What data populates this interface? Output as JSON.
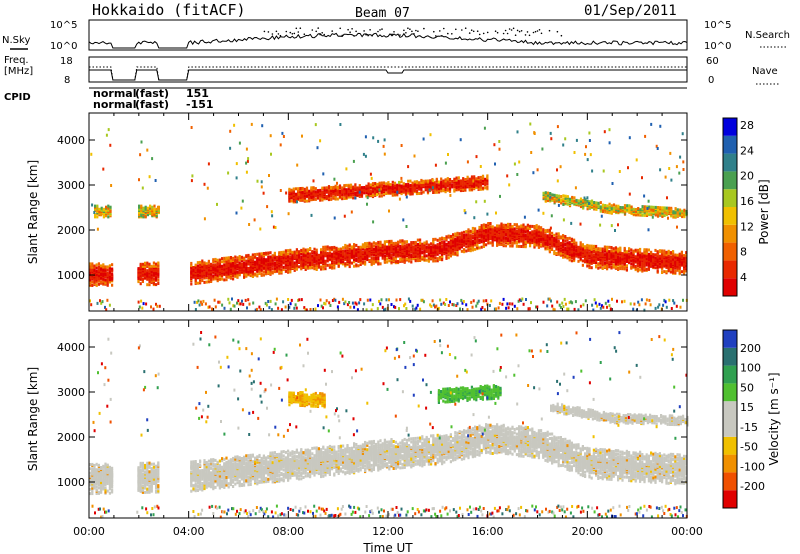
{
  "header": {
    "station": "Hokkaido (fitACF)",
    "beam": "Beam 07",
    "date": "01/Sep/2011"
  },
  "summary": {
    "nsky_label": "N.Sky",
    "nsearch_label": "N.Search",
    "freq_label_line1": "Freq.",
    "freq_label_line2": "[MHz]",
    "nave_label": "Nave",
    "cpid_label": "CPID",
    "nsky_ticks": [
      "10^5",
      "10^0"
    ],
    "nsearch_ticks": [
      "10^5",
      "10^0"
    ],
    "freq_ticks": [
      "18",
      "8"
    ],
    "nave_ticks": [
      "60",
      "0"
    ],
    "cpid_rows": [
      {
        "mode": "normal",
        "sub": "(fast)",
        "id": "151"
      },
      {
        "mode": "normal",
        "sub": "(fast)",
        "id": "-151"
      }
    ],
    "data_gaps_hours": [
      [
        0.9,
        1.9
      ],
      [
        2.8,
        4.0
      ]
    ]
  },
  "chart_data": [
    {
      "type": "heatmap",
      "name": "power",
      "ylabel": "Slant Range [km]",
      "xlim": [
        0,
        24
      ],
      "ylim": [
        200,
        4600
      ],
      "yticks": [
        "1000",
        "2000",
        "3000",
        "4000"
      ],
      "colorbar": {
        "label": "Power [dB]",
        "ticks": [
          "4",
          "8",
          "12",
          "16",
          "20",
          "24",
          "28"
        ],
        "colors": [
          "#0000dd",
          "#2060b0",
          "#30808a",
          "#4aa050",
          "#a8c820",
          "#f0c000",
          "#f09000",
          "#f06000",
          "#e82800",
          "#e00000"
        ]
      },
      "echo_bands": [
        {
          "start": 0.0,
          "end": 24.0,
          "center_km": [
            [
              0,
              1050
            ],
            [
              4,
              1080
            ],
            [
              8,
              1350
            ],
            [
              12,
              1550
            ],
            [
              14,
              1600
            ],
            [
              16,
              1950
            ],
            [
              18,
              1900
            ],
            [
              20,
              1450
            ],
            [
              24,
              1300
            ]
          ],
          "width_km": 500,
          "level": "high"
        },
        {
          "start": 0.2,
          "end": 4.0,
          "center_km": [
            [
              0,
              2450
            ],
            [
              4,
              2450
            ]
          ],
          "width_km": 250,
          "level": "medium"
        },
        {
          "start": 8.0,
          "end": 16.0,
          "center_km": [
            [
              8,
              2800
            ],
            [
              12,
              2950
            ],
            [
              16,
              3100
            ]
          ],
          "width_km": 300,
          "level": "high"
        },
        {
          "start": 18.2,
          "end": 24.0,
          "center_km": [
            [
              18,
              2800
            ],
            [
              21,
              2500
            ],
            [
              24,
              2400
            ]
          ],
          "width_km": 200,
          "level": "medium"
        }
      ]
    },
    {
      "type": "heatmap",
      "name": "velocity",
      "ylabel": "Slant Range [km]",
      "xlabel": "Time UT",
      "xlim": [
        0,
        24
      ],
      "ylim": [
        200,
        4600
      ],
      "xticks": [
        "00:00",
        "04:00",
        "08:00",
        "12:00",
        "16:00",
        "20:00",
        "00:00"
      ],
      "yticks": [
        "1000",
        "2000",
        "3000",
        "4000"
      ],
      "colorbar": {
        "label": "Velocity [m s⁻¹]",
        "ticks": [
          "200",
          "100",
          "50",
          "15",
          "-15",
          "-50",
          "-100",
          "-200"
        ],
        "colors": [
          "#2040c0",
          "#2a7070",
          "#30a050",
          "#50c030",
          "#c8c8c0",
          "#c8c8c0",
          "#f0c000",
          "#f09000",
          "#f05000",
          "#e00000"
        ]
      },
      "echo_bands": [
        {
          "start": 0.0,
          "end": 24.0,
          "center_km": [
            [
              0,
              1100
            ],
            [
              4,
              1150
            ],
            [
              8,
              1400
            ],
            [
              12,
              1650
            ],
            [
              14,
              1750
            ],
            [
              16,
              2000
            ],
            [
              18,
              1900
            ],
            [
              20,
              1450
            ],
            [
              24,
              1300
            ]
          ],
          "width_km": 650,
          "level": "ground"
        },
        {
          "start": 8.0,
          "end": 9.5,
          "center_km": [
            [
              8,
              2900
            ],
            [
              9.5,
              2850
            ]
          ],
          "width_km": 300,
          "level": "negative"
        },
        {
          "start": 14.0,
          "end": 16.5,
          "center_km": [
            [
              14,
              2950
            ],
            [
              16.5,
              3050
            ]
          ],
          "width_km": 300,
          "level": "positive"
        },
        {
          "start": 18.5,
          "end": 24.0,
          "center_km": [
            [
              18.5,
              2700
            ],
            [
              21,
              2450
            ],
            [
              24,
              2400
            ]
          ],
          "width_km": 200,
          "level": "ground"
        }
      ]
    }
  ]
}
